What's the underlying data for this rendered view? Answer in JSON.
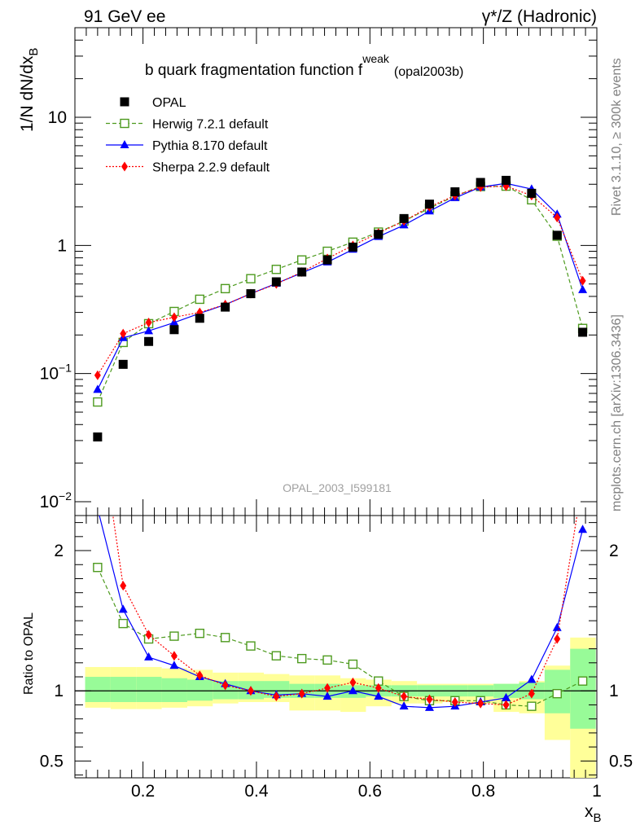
{
  "header": {
    "left": "91 GeV ee",
    "right": "γ*/Z (Hadronic)",
    "title": "b quark fragmentation function f",
    "title_sup": "weak",
    "title_ref": "(opal2003b)",
    "analysis_id": "OPAL_2003_I599181",
    "side_rivet": "Rivet 3.1.10, ≥ 300k events",
    "side_site": "mcplots.cern.ch [arXiv:1306.3436]"
  },
  "chart_data": [
    {
      "type": "scatter",
      "panel": "main",
      "ylabel": "1/N dN/dx",
      "ylabel_sub": "B",
      "yscale": "log",
      "ylim": [
        0.01,
        50
      ],
      "xlim": [
        0.08,
        1.0
      ],
      "yticks": [
        {
          "label": "10",
          "sup": "−2",
          "value": 0.01
        },
        {
          "label": "10",
          "sup": "−1",
          "value": 0.1
        },
        {
          "label": "1",
          "sup": "",
          "value": 1
        },
        {
          "label": "10",
          "sup": "",
          "value": 10
        }
      ],
      "legend_position": "top-left",
      "x": [
        0.12,
        0.165,
        0.21,
        0.255,
        0.3,
        0.345,
        0.39,
        0.435,
        0.48,
        0.525,
        0.57,
        0.615,
        0.66,
        0.705,
        0.75,
        0.795,
        0.84,
        0.885,
        0.93,
        0.975
      ],
      "series": [
        {
          "name": "OPAL",
          "color": "#000000",
          "marker": "filled-square",
          "line": "none",
          "values": [
            0.032,
            0.118,
            0.178,
            0.22,
            0.27,
            0.33,
            0.42,
            0.52,
            0.62,
            0.77,
            0.97,
            1.22,
            1.62,
            2.1,
            2.62,
            3.1,
            3.22,
            2.55,
            1.2,
            0.21
          ]
        },
        {
          "name": "Herwig 7.2.1 default",
          "color": "#4d9a1e",
          "marker": "open-square",
          "line": "dashed",
          "values": [
            0.06,
            0.175,
            0.245,
            0.305,
            0.38,
            0.46,
            0.55,
            0.65,
            0.77,
            0.9,
            1.06,
            1.27,
            1.55,
            1.95,
            2.43,
            2.88,
            2.9,
            2.27,
            1.18,
            0.225
          ]
        },
        {
          "name": "Pythia 8.170 default",
          "color": "#0000ff",
          "marker": "filled-triangle",
          "line": "solid",
          "values": [
            0.075,
            0.19,
            0.215,
            0.25,
            0.295,
            0.345,
            0.42,
            0.505,
            0.61,
            0.74,
            0.93,
            1.17,
            1.44,
            1.85,
            2.35,
            2.85,
            3.05,
            2.75,
            1.75,
            0.45
          ]
        },
        {
          "name": "Sherpa 2.2.9 default",
          "color": "#ff0000",
          "marker": "filled-diamond",
          "line": "dotted",
          "values": [
            0.097,
            0.205,
            0.25,
            0.275,
            0.3,
            0.345,
            0.42,
            0.5,
            0.62,
            0.79,
            1.0,
            1.25,
            1.55,
            2.0,
            2.45,
            2.85,
            2.9,
            2.45,
            1.65,
            0.53
          ]
        }
      ]
    },
    {
      "type": "line",
      "panel": "ratio",
      "xlabel": "x",
      "xlabel_sub": "B",
      "ylabel": "Ratio to OPAL",
      "ylim": [
        0.38,
        2.25
      ],
      "yticks": [
        {
          "label": "0.5",
          "value": 0.5
        },
        {
          "label": "1",
          "value": 1
        },
        {
          "label": "2",
          "value": 2
        }
      ],
      "xticks": [
        {
          "label": "0.2",
          "value": 0.2
        },
        {
          "label": "0.4",
          "value": 0.4
        },
        {
          "label": "0.6",
          "value": 0.6
        },
        {
          "label": "0.8",
          "value": 0.8
        },
        {
          "label": "1",
          "value": 1.0
        }
      ],
      "reference_value": 1,
      "bands": {
        "edges": [
          0.098,
          0.143,
          0.188,
          0.233,
          0.278,
          0.323,
          0.368,
          0.413,
          0.458,
          0.503,
          0.548,
          0.593,
          0.638,
          0.683,
          0.728,
          0.773,
          0.818,
          0.863,
          0.908,
          0.953,
          0.998
        ],
        "stat_low": [
          0.92,
          0.92,
          0.92,
          0.92,
          0.93,
          0.94,
          0.94,
          0.95,
          0.95,
          0.95,
          0.95,
          0.96,
          0.96,
          0.96,
          0.96,
          0.96,
          0.95,
          0.94,
          0.84,
          0.73
        ],
        "stat_high": [
          1.1,
          1.1,
          1.1,
          1.09,
          1.08,
          1.07,
          1.07,
          1.07,
          1.05,
          1.05,
          1.04,
          1.04,
          1.04,
          1.04,
          1.04,
          1.04,
          1.05,
          1.06,
          1.15,
          1.3
        ],
        "syst_low": [
          0.88,
          0.87,
          0.87,
          0.88,
          0.89,
          0.91,
          0.92,
          0.92,
          0.86,
          0.86,
          0.85,
          0.89,
          0.91,
          0.91,
          0.92,
          0.91,
          0.85,
          0.84,
          0.65,
          0.38
        ],
        "syst_high": [
          1.17,
          1.17,
          1.17,
          1.16,
          1.15,
          1.13,
          1.13,
          1.12,
          1.11,
          1.11,
          1.09,
          1.08,
          1.07,
          1.05,
          1.05,
          1.05,
          1.05,
          1.07,
          1.18,
          1.38
        ],
        "stat_color": "#98fb98",
        "syst_color": "#ffff99"
      },
      "x": [
        0.12,
        0.165,
        0.21,
        0.255,
        0.3,
        0.345,
        0.39,
        0.435,
        0.48,
        0.525,
        0.57,
        0.615,
        0.66,
        0.705,
        0.75,
        0.795,
        0.84,
        0.885,
        0.93,
        0.975
      ],
      "series": [
        {
          "name": "Herwig 7.2.1 default",
          "values": [
            1.88,
            1.48,
            1.37,
            1.39,
            1.41,
            1.38,
            1.32,
            1.25,
            1.23,
            1.22,
            1.19,
            1.07,
            0.96,
            0.93,
            0.93,
            0.93,
            0.9,
            0.89,
            0.98,
            1.07
          ]
        },
        {
          "name": "Pythia 8.170 default",
          "values": [
            2.3,
            1.58,
            1.24,
            1.18,
            1.1,
            1.05,
            1.0,
            0.97,
            0.98,
            0.96,
            1.0,
            0.96,
            0.89,
            0.88,
            0.89,
            0.92,
            0.95,
            1.08,
            1.45,
            2.15
          ]
        },
        {
          "name": "Sherpa 2.2.9 default",
          "values": [
            3.0,
            1.75,
            1.4,
            1.25,
            1.11,
            1.04,
            1.0,
            0.96,
            0.98,
            1.02,
            1.06,
            1.02,
            0.96,
            0.94,
            0.92,
            0.91,
            0.9,
            0.98,
            1.37,
            2.5
          ]
        }
      ]
    }
  ]
}
